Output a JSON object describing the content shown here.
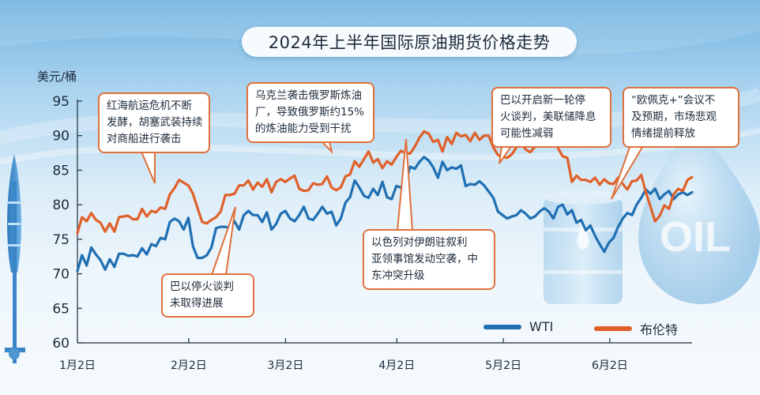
{
  "chart_data": {
    "type": "line",
    "title": "2024年上半年国际原油期货价格走势",
    "ylabel": "美元/桶",
    "ylim": [
      60,
      95
    ],
    "yticks": [
      60,
      65,
      70,
      75,
      80,
      85,
      90,
      95
    ],
    "xlim": [
      0,
      127
    ],
    "xticks": [
      {
        "label": "1月2日",
        "x": 0
      },
      {
        "label": "2月2日",
        "x": 23
      },
      {
        "label": "3月2日",
        "x": 43
      },
      {
        "label": "4月2日",
        "x": 66
      },
      {
        "label": "5月2日",
        "x": 88
      },
      {
        "label": "6月2日",
        "x": 110
      }
    ],
    "legend": "bottom-right",
    "grid": false,
    "series": [
      {
        "name": "WTI",
        "color": "#1f6fb2",
        "points": [
          [
            0,
            70.4
          ],
          [
            1,
            72.7
          ],
          [
            2,
            71.2
          ],
          [
            3,
            73.8
          ],
          [
            4,
            72.8
          ],
          [
            5,
            72.0
          ],
          [
            6,
            70.6
          ],
          [
            7,
            72.1
          ],
          [
            8,
            71.0
          ],
          [
            9,
            72.9
          ],
          [
            10,
            72.9
          ],
          [
            11,
            72.6
          ],
          [
            12,
            72.7
          ],
          [
            13,
            72.5
          ],
          [
            14,
            73.7
          ],
          [
            15,
            72.8
          ],
          [
            16,
            74.3
          ],
          [
            17,
            74.0
          ],
          [
            18,
            75.2
          ],
          [
            19,
            75.0
          ],
          [
            20,
            77.5
          ],
          [
            21,
            78.0
          ],
          [
            22,
            77.6
          ],
          [
            23,
            76.4
          ],
          [
            24,
            78.1
          ],
          [
            25,
            74.0
          ],
          [
            26,
            72.3
          ],
          [
            27,
            72.3
          ],
          [
            28,
            72.7
          ],
          [
            29,
            73.8
          ],
          [
            30,
            76.6
          ],
          [
            31,
            76.8
          ],
          [
            32,
            76.8
          ],
          [
            33,
            76.6
          ],
          [
            34,
            77.6
          ],
          [
            35,
            76.4
          ],
          [
            36,
            78.5
          ],
          [
            37,
            79.1
          ],
          [
            38,
            78.5
          ],
          [
            39,
            78.5
          ],
          [
            40,
            77.5
          ],
          [
            41,
            78.9
          ],
          [
            42,
            76.4
          ],
          [
            43,
            77.2
          ],
          [
            44,
            78.7
          ],
          [
            45,
            79.1
          ],
          [
            46,
            78.0
          ],
          [
            47,
            77.6
          ],
          [
            48,
            78.5
          ],
          [
            49,
            79.7
          ],
          [
            50,
            78.0
          ],
          [
            51,
            77.8
          ],
          [
            52,
            78.7
          ],
          [
            53,
            79.7
          ],
          [
            54,
            78.7
          ],
          [
            55,
            79.0
          ],
          [
            56,
            77.0
          ],
          [
            57,
            78.0
          ],
          [
            58,
            80.3
          ],
          [
            59,
            81.1
          ],
          [
            60,
            83.5
          ],
          [
            61,
            82.5
          ],
          [
            62,
            81.3
          ],
          [
            63,
            81.0
          ],
          [
            64,
            82.3
          ],
          [
            65,
            81.4
          ],
          [
            66,
            83.3
          ],
          [
            67,
            81.1
          ],
          [
            68,
            80.8
          ],
          [
            69,
            82.7
          ],
          [
            70,
            82.5
          ],
          [
            71,
            83.3
          ],
          [
            72,
            85.5
          ],
          [
            73,
            85.2
          ],
          [
            74,
            86.2
          ],
          [
            75,
            86.9
          ],
          [
            76,
            86.4
          ],
          [
            77,
            85.4
          ],
          [
            78,
            83.9
          ],
          [
            79,
            86.2
          ],
          [
            80,
            85.0
          ],
          [
            81,
            85.4
          ],
          [
            82,
            85.2
          ],
          [
            83,
            85.7
          ],
          [
            84,
            82.7
          ],
          [
            85,
            83.0
          ],
          [
            86,
            82.9
          ],
          [
            87,
            83.4
          ],
          [
            88,
            82.8
          ],
          [
            89,
            81.9
          ],
          [
            90,
            81.0
          ],
          [
            91,
            79.0
          ],
          [
            92,
            78.5
          ],
          [
            93,
            78.0
          ],
          [
            94,
            78.3
          ],
          [
            95,
            78.5
          ],
          [
            96,
            79.2
          ],
          [
            97,
            78.7
          ],
          [
            98,
            78.0
          ],
          [
            99,
            78.3
          ],
          [
            100,
            79.0
          ],
          [
            101,
            79.5
          ],
          [
            102,
            79.0
          ],
          [
            103,
            78.0
          ],
          [
            104,
            79.7
          ],
          [
            105,
            80.0
          ],
          [
            106,
            78.6
          ],
          [
            107,
            79.2
          ],
          [
            108,
            77.4
          ],
          [
            109,
            77.8
          ],
          [
            110,
            76.3
          ],
          [
            111,
            77.0
          ],
          [
            112,
            75.5
          ],
          [
            113,
            74.3
          ],
          [
            114,
            73.2
          ],
          [
            115,
            74.5
          ],
          [
            116,
            75.2
          ],
          [
            117,
            76.8
          ],
          [
            118,
            78.0
          ],
          [
            119,
            78.8
          ],
          [
            120,
            78.5
          ],
          [
            121,
            80.0
          ],
          [
            122,
            81.0
          ],
          [
            123,
            82.2
          ],
          [
            124,
            81.6
          ],
          [
            125,
            82.3
          ],
          [
            126,
            80.8
          ],
          [
            127,
            81.5
          ],
          [
            128,
            82.0
          ],
          [
            129,
            80.8
          ],
          [
            130,
            81.5
          ],
          [
            131,
            81.8
          ],
          [
            132,
            81.4
          ],
          [
            133,
            81.8
          ]
        ]
      },
      {
        "name": "布伦特",
        "color": "#e0602a",
        "points": [
          [
            0,
            75.9
          ],
          [
            1,
            78.2
          ],
          [
            2,
            77.6
          ],
          [
            3,
            78.8
          ],
          [
            4,
            77.8
          ],
          [
            5,
            77.4
          ],
          [
            6,
            76.1
          ],
          [
            7,
            77.3
          ],
          [
            8,
            76.1
          ],
          [
            9,
            78.2
          ],
          [
            10,
            78.3
          ],
          [
            11,
            78.4
          ],
          [
            12,
            77.9
          ],
          [
            13,
            77.9
          ],
          [
            14,
            79.4
          ],
          [
            15,
            78.3
          ],
          [
            16,
            79.1
          ],
          [
            17,
            78.9
          ],
          [
            18,
            79.6
          ],
          [
            19,
            79.4
          ],
          [
            20,
            81.5
          ],
          [
            21,
            82.4
          ],
          [
            22,
            83.6
          ],
          [
            23,
            83.2
          ],
          [
            24,
            82.8
          ],
          [
            25,
            81.6
          ],
          [
            26,
            79.5
          ],
          [
            27,
            77.5
          ],
          [
            28,
            77.3
          ],
          [
            29,
            77.8
          ],
          [
            30,
            78.2
          ],
          [
            31,
            79.0
          ],
          [
            32,
            81.4
          ],
          [
            33,
            81.4
          ],
          [
            34,
            81.6
          ],
          [
            35,
            82.8
          ],
          [
            36,
            82.8
          ],
          [
            37,
            83.5
          ],
          [
            38,
            82.2
          ],
          [
            39,
            83.2
          ],
          [
            40,
            82.6
          ],
          [
            41,
            83.7
          ],
          [
            42,
            81.8
          ],
          [
            43,
            83.3
          ],
          [
            44,
            83.7
          ],
          [
            45,
            83.3
          ],
          [
            46,
            83.8
          ],
          [
            47,
            84.2
          ],
          [
            48,
            82.3
          ],
          [
            49,
            82.0
          ],
          [
            50,
            82.1
          ],
          [
            51,
            83.1
          ],
          [
            52,
            82.9
          ],
          [
            53,
            83.0
          ],
          [
            54,
            84.1
          ],
          [
            55,
            82.5
          ],
          [
            56,
            82.1
          ],
          [
            57,
            82.5
          ],
          [
            58,
            84.1
          ],
          [
            59,
            84.4
          ],
          [
            60,
            86.3
          ],
          [
            61,
            85.5
          ],
          [
            62,
            86.6
          ],
          [
            63,
            87.7
          ],
          [
            64,
            86.1
          ],
          [
            65,
            86.6
          ],
          [
            66,
            85.3
          ],
          [
            67,
            86.3
          ],
          [
            68,
            85.8
          ],
          [
            69,
            86.9
          ],
          [
            70,
            87.8
          ],
          [
            71,
            87.5
          ],
          [
            72,
            87.4
          ],
          [
            73,
            88.4
          ],
          [
            74,
            89.7
          ],
          [
            75,
            90.6
          ],
          [
            76,
            90.3
          ],
          [
            77,
            89.1
          ],
          [
            78,
            89.4
          ],
          [
            79,
            87.7
          ],
          [
            80,
            89.8
          ],
          [
            81,
            88.8
          ],
          [
            82,
            90.4
          ],
          [
            83,
            89.9
          ],
          [
            84,
            90.1
          ],
          [
            85,
            89.2
          ],
          [
            86,
            90.4
          ],
          [
            87,
            89.4
          ],
          [
            88,
            90.0
          ],
          [
            89,
            90.0
          ],
          [
            90,
            88.3
          ],
          [
            91,
            87.2
          ],
          [
            92,
            86.9
          ],
          [
            93,
            86.8
          ],
          [
            94,
            87.3
          ],
          [
            95,
            88.3
          ],
          [
            96,
            89.0
          ],
          [
            97,
            88.0
          ],
          [
            98,
            87.6
          ],
          [
            99,
            88.4
          ],
          [
            100,
            89.4
          ],
          [
            101,
            88.8
          ],
          [
            102,
            88.5
          ],
          [
            103,
            89.0
          ],
          [
            104,
            88.2
          ],
          [
            105,
            87.0
          ],
          [
            106,
            86.8
          ],
          [
            107,
            83.3
          ],
          [
            108,
            84.2
          ],
          [
            109,
            83.6
          ],
          [
            110,
            83.6
          ],
          [
            111,
            83.3
          ],
          [
            112,
            83.9
          ],
          [
            113,
            82.9
          ],
          [
            114,
            83.7
          ],
          [
            115,
            83.1
          ],
          [
            116,
            83.0
          ],
          [
            117,
            83.9
          ],
          [
            118,
            83.0
          ],
          [
            119,
            82.2
          ],
          [
            120,
            83.4
          ],
          [
            121,
            83.5
          ],
          [
            122,
            84.3
          ],
          [
            123,
            81.8
          ],
          [
            124,
            79.7
          ],
          [
            125,
            77.6
          ],
          [
            126,
            78.4
          ],
          [
            127,
            79.9
          ],
          [
            128,
            79.4
          ],
          [
            129,
            81.5
          ],
          [
            130,
            82.3
          ],
          [
            131,
            82.0
          ],
          [
            132,
            83.6
          ],
          [
            133,
            84.0
          ]
        ]
      }
    ],
    "annotations": [
      {
        "lines": [
          "红海航运危机不断",
          "发酵，胡塞武装持续",
          "对商船进行袭击"
        ]
      },
      {
        "lines": [
          "乌克兰袭击俄罗斯炼油",
          "厂，导致俄罗斯约15%",
          "的炼油能力受到干扰"
        ]
      },
      {
        "lines": [
          "巴以开启新一轮停",
          "火谈判，美联储降息",
          "可能性减弱"
        ]
      },
      {
        "lines": [
          "“欧佩克+”会议不",
          "及预期，市场悲观",
          "情绪提前释放"
        ]
      },
      {
        "lines": [
          "以色列对伊朗驻叙利",
          "亚领事馆发动空袭，中",
          "东冲突升级"
        ]
      },
      {
        "lines": [
          "巴以停火谈判",
          "未取得进展"
        ]
      }
    ]
  },
  "colors": {
    "wti": "#1f6fb2",
    "brent": "#e0602a",
    "callout_border": "#e0703c",
    "text": "#1d2b3a"
  }
}
